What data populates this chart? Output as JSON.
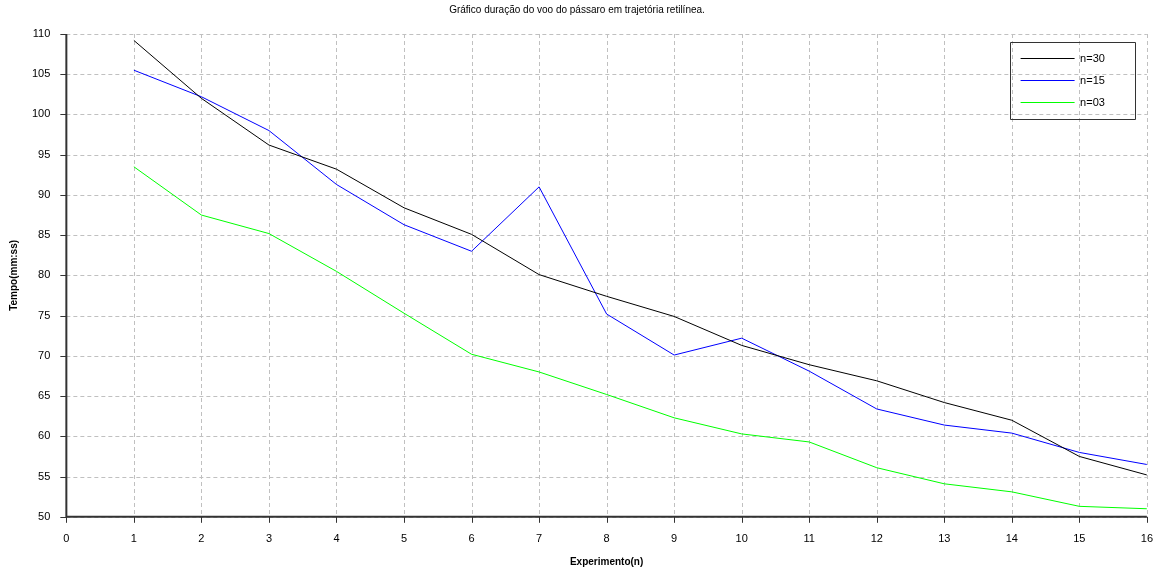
{
  "chart_data": {
    "type": "line",
    "title": "Gráfico duração do voo do pássaro em trajetória retilínea.",
    "xlabel": "Experimento(n)",
    "ylabel": "Tempo(mm:ss)",
    "x": [
      1,
      2,
      3,
      4,
      5,
      6,
      7,
      8,
      9,
      10,
      11,
      12,
      13,
      14,
      15,
      16
    ],
    "series": [
      {
        "name": "n=30",
        "color": "#000000",
        "values": [
          109.2,
          102,
          96.2,
          93.2,
          88.4,
          85.1,
          80.1,
          77.4,
          74.9,
          71.3,
          68.9,
          66.9,
          64.2,
          62,
          57.5,
          55.2
        ]
      },
      {
        "name": "n=15",
        "color": "#0000ff",
        "values": [
          105.5,
          102.2,
          98,
          91.3,
          86.3,
          83,
          91,
          75.2,
          70.1,
          72.2,
          68.1,
          63.4,
          61.4,
          60.4,
          58,
          56.5
        ]
      },
      {
        "name": "n=03",
        "color": "#00ff00",
        "values": [
          93.5,
          87.5,
          85.2,
          80.5,
          75.3,
          70.2,
          68,
          65.2,
          62.3,
          60.3,
          59.3,
          56.1,
          54.1,
          53.1,
          51.3,
          51
        ]
      }
    ],
    "xlim": [
      0,
      16
    ],
    "xticks": [
      0,
      1,
      2,
      3,
      4,
      5,
      6,
      7,
      8,
      9,
      10,
      11,
      12,
      13,
      14,
      15,
      16
    ],
    "ylim": [
      50,
      110
    ],
    "yticks": [
      50,
      55,
      60,
      65,
      70,
      75,
      80,
      85,
      90,
      95,
      100,
      105,
      110
    ],
    "grid": true,
    "legend": "top right",
    "marker": "none",
    "line_style": "solid"
  }
}
